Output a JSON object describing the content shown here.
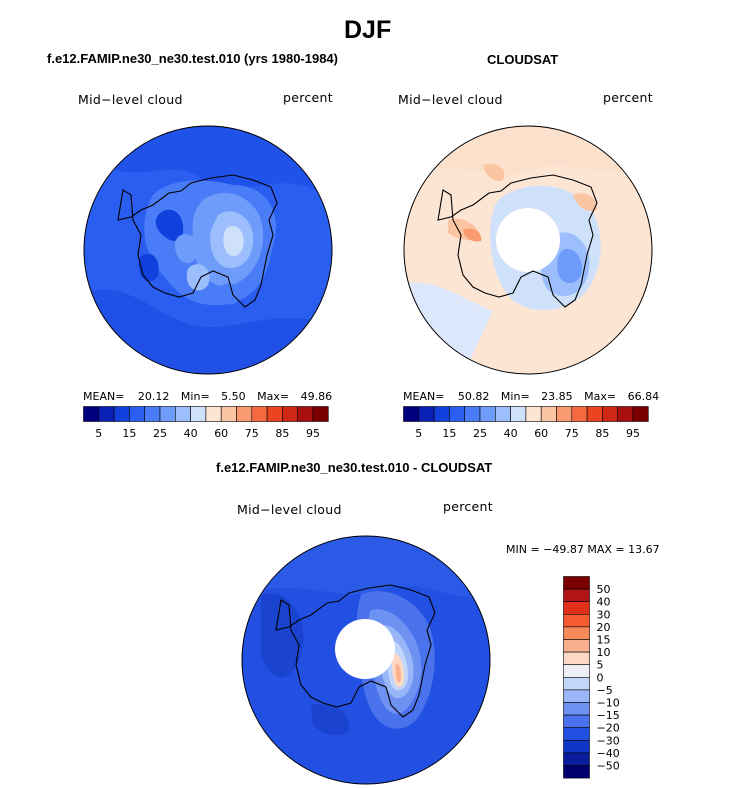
{
  "figure": {
    "season": "DJF",
    "model_title": "f.e12.FAMIP.ne30_ne30.test.010 (yrs 1980-1984)",
    "obs_title": "CLOUDSAT",
    "diff_title": "f.e12.FAMIP.ne30_ne30.test.010 - CLOUDSAT"
  },
  "panels": {
    "model": {
      "variable": "Mid−level cloud",
      "units": "percent",
      "stats": {
        "mean_label": "MEAN=",
        "mean": "20.12",
        "min_label": "Min=",
        "min": "5.50",
        "max_label": "Max=",
        "max": "49.86"
      }
    },
    "obs": {
      "variable": "Mid−level cloud",
      "units": "percent",
      "stats": {
        "mean_label": "MEAN=",
        "mean": "50.82",
        "min_label": "Min=",
        "min": "23.85",
        "max_label": "Max=",
        "max": "66.84"
      }
    },
    "diff": {
      "variable": "Mid−level cloud",
      "units": "percent",
      "minmax": "MIN = −49.87 MAX =  13.67"
    }
  },
  "colorbars": {
    "abs": {
      "colors": [
        "#00007f",
        "#0a20b4",
        "#1240dc",
        "#2a5ef0",
        "#4a7cf8",
        "#6e9cfa",
        "#9cbefc",
        "#cfe0fb",
        "#fde5d4",
        "#fbc4a2",
        "#f99a70",
        "#f76a40",
        "#ec4420",
        "#d02818",
        "#a81010",
        "#7a0000"
      ],
      "labels": [
        "5",
        "15",
        "25",
        "40",
        "60",
        "75",
        "85",
        "95"
      ]
    },
    "diff": {
      "colors": [
        "#7a0000",
        "#b01414",
        "#e0301a",
        "#f65a30",
        "#f88a5a",
        "#fab08c",
        "#fdd8c4",
        "#eef0f8",
        "#c2d6fa",
        "#98b6f8",
        "#6e92f2",
        "#4a72ec",
        "#2250e2",
        "#0f36c6",
        "#081c9c",
        "#000070"
      ],
      "labels": [
        "50",
        "40",
        "30",
        "20",
        "15",
        "10",
        "5",
        "0",
        "−5",
        "−10",
        "−15",
        "−20",
        "−30",
        "−40",
        "−50"
      ]
    }
  }
}
